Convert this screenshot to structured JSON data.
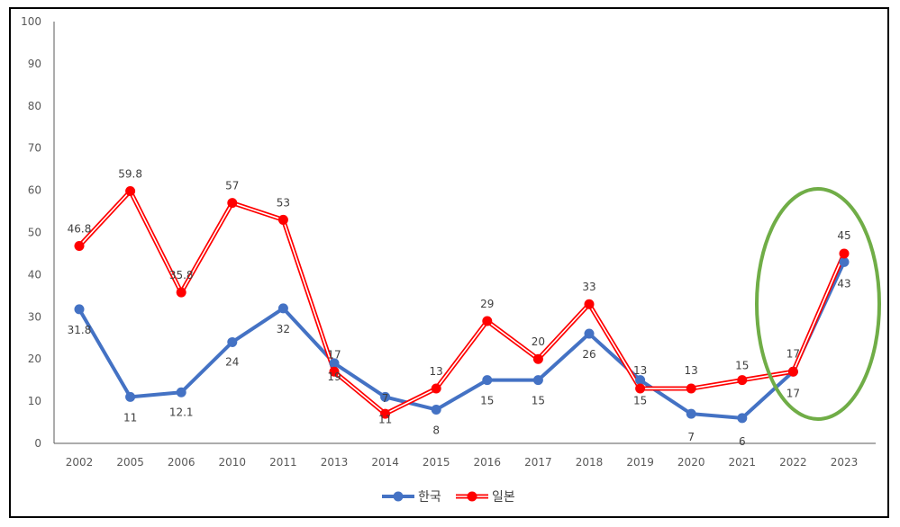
{
  "chart_data": {
    "type": "line",
    "categories": [
      "2002",
      "2005",
      "2006",
      "2010",
      "2011",
      "2013",
      "2014",
      "2015",
      "2016",
      "2017",
      "2018",
      "2019",
      "2020",
      "2021",
      "2022",
      "2023"
    ],
    "ylim": [
      0,
      100
    ],
    "yticks": [
      0,
      10,
      20,
      30,
      40,
      50,
      60,
      70,
      80,
      90,
      100
    ],
    "grid": false,
    "legend_position": "bottom",
    "series": [
      {
        "name": "한국",
        "color": "#4472C4",
        "values": [
          31.8,
          11,
          12.1,
          24,
          32,
          19,
          11,
          8,
          15,
          15,
          26,
          15,
          7,
          6,
          17,
          43
        ],
        "labels": [
          "31.8",
          "11",
          "12.1",
          "24",
          "32",
          "19",
          "11",
          "8",
          "15",
          "15",
          "26",
          "15",
          "7",
          "6",
          "17",
          "43"
        ]
      },
      {
        "name": "일본",
        "color": "#FF0000",
        "values": [
          46.8,
          59.8,
          35.8,
          57,
          53,
          17,
          7,
          13,
          29,
          20,
          33,
          13,
          13,
          15,
          17,
          45
        ],
        "labels": [
          "46.8",
          "59.8",
          "35.8",
          "57",
          "53",
          "17",
          "7",
          "13",
          "29",
          "20",
          "33",
          "13",
          "13",
          "15",
          "17",
          "45"
        ]
      }
    ],
    "annotations": [
      {
        "type": "ellipse",
        "color": "#70AD47",
        "around": [
          "2022",
          "2023"
        ]
      }
    ]
  }
}
